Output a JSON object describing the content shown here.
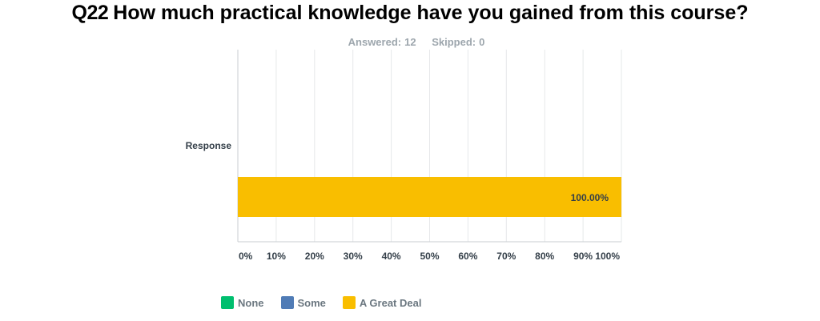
{
  "question": {
    "number": "Q22",
    "text": "How much practical knowledge have you gained from this course?"
  },
  "stats": {
    "answered_label": "Answered:",
    "answered_value": "12",
    "skipped_label": "Skipped:",
    "skipped_value": "0"
  },
  "colors": {
    "none": "#00bf6f",
    "some": "#507cb6",
    "great_deal": "#f9be00",
    "grid": "#e6e8ea",
    "axis": "#c9ced2",
    "tick_text": "#333e48"
  },
  "chart_data": {
    "type": "bar",
    "orientation": "horizontal",
    "stacked": true,
    "categories": [
      "Response"
    ],
    "series": [
      {
        "name": "None",
        "values": [
          0
        ]
      },
      {
        "name": "Some",
        "values": [
          0
        ]
      },
      {
        "name": "A Great Deal",
        "values": [
          100
        ]
      }
    ],
    "data_labels": [
      "100.00%"
    ],
    "xlim": [
      0,
      100
    ],
    "xticks": [
      "0%",
      "10%",
      "20%",
      "30%",
      "40%",
      "50%",
      "60%",
      "70%",
      "80%",
      "90%",
      "100%"
    ],
    "grid": true,
    "legend_position": "bottom-left"
  }
}
